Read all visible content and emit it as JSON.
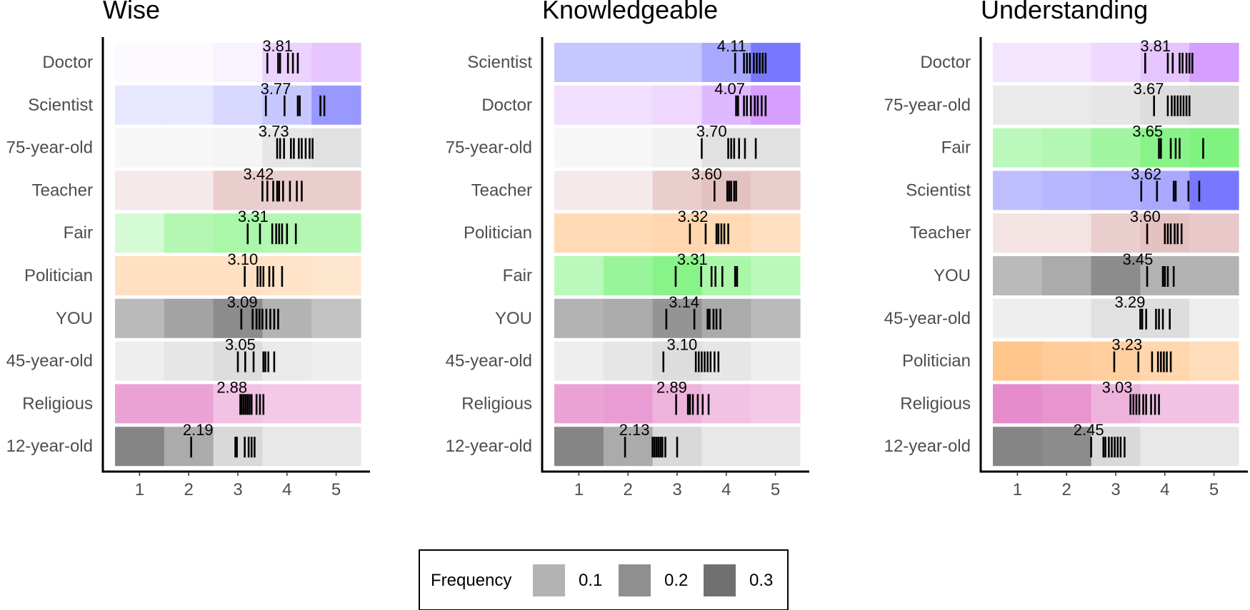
{
  "legend": {
    "title": "Frequency",
    "items": [
      {
        "label": "0.1",
        "value": 0.1,
        "color": "#b3b3b3"
      },
      {
        "label": "0.2",
        "value": 0.2,
        "color": "#8f8f8f"
      },
      {
        "label": "0.3",
        "value": 0.3,
        "color": "#707070"
      }
    ]
  },
  "chart_data": [
    {
      "type": "heatmap",
      "title": "Wise",
      "xlabel": "",
      "ylabel": "",
      "x_ticks": [
        "1",
        "2",
        "3",
        "4",
        "5"
      ],
      "xlim": [
        0.5,
        5.5
      ],
      "grid": false,
      "rows": [
        {
          "label": "Doctor",
          "mean": "3.81",
          "color": "#c77dff",
          "freq": [
            0.05,
            0.05,
            0.1,
            0.35,
            0.45
          ],
          "ticks": [
            3.6,
            3.82,
            3.86,
            4.02,
            4.12,
            4.22
          ]
        },
        {
          "label": "Scientist",
          "mean": "3.77",
          "color": "#6060ff",
          "freq": [
            0.15,
            0.15,
            0.25,
            0.35,
            0.65
          ],
          "ticks": [
            3.57,
            3.95,
            4.22,
            4.26,
            4.68,
            4.76
          ]
        },
        {
          "label": "75-year-old",
          "mean": "3.73",
          "color": "#aaaaaa",
          "freq": [
            0.1,
            0.1,
            0.12,
            0.3,
            0.35
          ],
          "ticks": [
            3.8,
            3.86,
            3.94,
            4.08,
            4.14,
            4.24,
            4.3,
            4.38,
            4.46,
            4.52
          ]
        },
        {
          "label": "Teacher",
          "mean": "3.42",
          "color": "#d09090",
          "freq": [
            0.2,
            0.2,
            0.45,
            0.45,
            0.45
          ],
          "ticks": [
            3.5,
            3.6,
            3.72,
            3.8,
            3.84,
            3.92,
            4.06,
            4.2,
            4.3
          ]
        },
        {
          "label": "Fair",
          "mean": "3.31",
          "color": "#55ee55",
          "freq": [
            0.25,
            0.45,
            0.5,
            0.45,
            0.45
          ],
          "ticks": [
            3.2,
            3.45,
            3.7,
            3.78,
            3.84,
            3.9,
            4.0,
            4.18
          ]
        },
        {
          "label": "Politician",
          "mean": "3.10",
          "color": "#ffbb77",
          "freq": [
            0.45,
            0.45,
            0.45,
            0.4,
            0.35
          ],
          "ticks": [
            3.14,
            3.4,
            3.46,
            3.52,
            3.64,
            3.72,
            3.9
          ]
        },
        {
          "label": "YOU",
          "mean": "3.09",
          "color": "#666666",
          "freq": [
            0.45,
            0.6,
            0.75,
            0.5,
            0.4
          ],
          "ticks": [
            3.07,
            3.3,
            3.38,
            3.44,
            3.5,
            3.58,
            3.66,
            3.74,
            3.82
          ]
        },
        {
          "label": "45-year-old",
          "mean": "3.05",
          "color": "#aaaaaa",
          "freq": [
            0.2,
            0.3,
            0.4,
            0.25,
            0.2
          ],
          "ticks": [
            3.0,
            3.15,
            3.32,
            3.52,
            3.56,
            3.62,
            3.74
          ]
        },
        {
          "label": "Religious",
          "mean": "2.88",
          "color": "#dd66bb",
          "freq": [
            0.6,
            0.6,
            0.4,
            0.35,
            0.35
          ],
          "ticks": [
            3.05,
            3.08,
            3.12,
            3.16,
            3.2,
            3.24,
            3.28,
            3.38,
            3.45,
            3.52
          ]
        },
        {
          "label": "12-year-old",
          "mean": "2.19",
          "color": "#666666",
          "freq": [
            0.8,
            0.55,
            0.25,
            0.15,
            0.15
          ],
          "ticks": [
            2.05,
            2.95,
            2.98,
            3.14,
            3.22,
            3.28,
            3.34
          ]
        }
      ]
    },
    {
      "type": "heatmap",
      "title": "Knowledgeable",
      "xlabel": "",
      "ylabel": "",
      "x_ticks": [
        "1",
        "2",
        "3",
        "4",
        "5"
      ],
      "xlim": [
        0.5,
        5.5
      ],
      "grid": false,
      "rows": [
        {
          "label": "Scientist",
          "mean": "4.11",
          "color": "#6060ff",
          "freq": [
            0.35,
            0.35,
            0.35,
            0.55,
            0.85
          ],
          "ticks": [
            4.18,
            4.36,
            4.42,
            4.48,
            4.56,
            4.62,
            4.68,
            4.74,
            4.8
          ]
        },
        {
          "label": "Doctor",
          "mean": "4.07",
          "color": "#c77dff",
          "freq": [
            0.25,
            0.25,
            0.3,
            0.55,
            0.75
          ],
          "ticks": [
            4.2,
            4.24,
            4.36,
            4.42,
            4.5,
            4.58,
            4.64,
            4.72,
            4.8
          ]
        },
        {
          "label": "75-year-old",
          "mean": "3.70",
          "color": "#aaaaaa",
          "freq": [
            0.1,
            0.1,
            0.15,
            0.35,
            0.35
          ],
          "ticks": [
            3.5,
            4.04,
            4.1,
            4.16,
            4.26,
            4.38,
            4.6
          ]
        },
        {
          "label": "Teacher",
          "mean": "3.60",
          "color": "#d09090",
          "freq": [
            0.2,
            0.2,
            0.45,
            0.55,
            0.45
          ],
          "ticks": [
            3.76,
            4.02,
            4.06,
            4.1,
            4.16,
            4.2
          ]
        },
        {
          "label": "Politician",
          "mean": "3.32",
          "color": "#ffbb77",
          "freq": [
            0.55,
            0.55,
            0.6,
            0.55,
            0.45
          ],
          "ticks": [
            3.26,
            3.58,
            3.8,
            3.84,
            3.9,
            3.96,
            4.04
          ]
        },
        {
          "label": "Fair",
          "mean": "3.31",
          "color": "#55ee55",
          "freq": [
            0.4,
            0.6,
            0.7,
            0.5,
            0.4
          ],
          "ticks": [
            2.97,
            3.49,
            3.7,
            3.78,
            3.92,
            4.18,
            4.22
          ]
        },
        {
          "label": "YOU",
          "mean": "3.14",
          "color": "#666666",
          "freq": [
            0.5,
            0.55,
            0.7,
            0.55,
            0.45
          ],
          "ticks": [
            2.78,
            3.35,
            3.62,
            3.66,
            3.74,
            3.8,
            3.88
          ]
        },
        {
          "label": "45-year-old",
          "mean": "3.10",
          "color": "#aaaaaa",
          "freq": [
            0.2,
            0.3,
            0.4,
            0.3,
            0.2
          ],
          "ticks": [
            2.72,
            3.38,
            3.44,
            3.5,
            3.56,
            3.62,
            3.68,
            3.76,
            3.84
          ]
        },
        {
          "label": "Religious",
          "mean": "2.89",
          "color": "#dd66bb",
          "freq": [
            0.6,
            0.65,
            0.5,
            0.4,
            0.35
          ],
          "ticks": [
            2.98,
            3.22,
            3.26,
            3.32,
            3.42,
            3.52,
            3.64
          ]
        },
        {
          "label": "12-year-old",
          "mean": "2.13",
          "color": "#666666",
          "freq": [
            0.8,
            0.55,
            0.25,
            0.15,
            0.15
          ],
          "ticks": [
            1.94,
            2.5,
            2.54,
            2.58,
            2.62,
            2.66,
            2.7,
            2.76,
            3.0
          ]
        }
      ]
    },
    {
      "type": "heatmap",
      "title": "Understanding",
      "xlabel": "",
      "ylabel": "",
      "x_ticks": [
        "1",
        "2",
        "3",
        "4",
        "5"
      ],
      "xlim": [
        0.5,
        5.5
      ],
      "grid": false,
      "rows": [
        {
          "label": "Doctor",
          "mean": "3.81",
          "color": "#c77dff",
          "freq": [
            0.2,
            0.2,
            0.3,
            0.45,
            0.75
          ],
          "ticks": [
            3.6,
            4.06,
            4.16,
            4.3,
            4.36,
            4.44,
            4.5,
            4.56
          ]
        },
        {
          "label": "75-year-old",
          "mean": "3.67",
          "color": "#aaaaaa",
          "freq": [
            0.25,
            0.25,
            0.3,
            0.4,
            0.45
          ],
          "ticks": [
            3.78,
            4.06,
            4.14,
            4.2,
            4.26,
            4.32,
            4.38,
            4.44,
            4.5
          ]
        },
        {
          "label": "Fair",
          "mean": "3.65",
          "color": "#55ee55",
          "freq": [
            0.4,
            0.45,
            0.55,
            0.7,
            0.75
          ],
          "ticks": [
            3.88,
            3.92,
            4.12,
            4.22,
            4.3,
            4.78
          ]
        },
        {
          "label": "Scientist",
          "mean": "3.62",
          "color": "#6060ff",
          "freq": [
            0.4,
            0.45,
            0.5,
            0.55,
            0.85
          ],
          "ticks": [
            3.52,
            3.84,
            4.18,
            4.22,
            4.48,
            4.7
          ]
        },
        {
          "label": "Teacher",
          "mean": "3.60",
          "color": "#d09090",
          "freq": [
            0.25,
            0.25,
            0.45,
            0.55,
            0.5
          ],
          "ticks": [
            3.64,
            4.0,
            4.06,
            4.12,
            4.2,
            4.26,
            4.34
          ]
        },
        {
          "label": "YOU",
          "mean": "3.45",
          "color": "#666666",
          "freq": [
            0.45,
            0.55,
            0.75,
            0.5,
            0.5
          ],
          "ticks": [
            3.64,
            3.96,
            4.0,
            4.06,
            4.18
          ]
        },
        {
          "label": "45-year-old",
          "mean": "3.29",
          "color": "#aaaaaa",
          "freq": [
            0.2,
            0.2,
            0.35,
            0.4,
            0.2
          ],
          "ticks": [
            3.5,
            3.54,
            3.62,
            3.82,
            3.88,
            3.96,
            4.1
          ]
        },
        {
          "label": "Politician",
          "mean": "3.23",
          "color": "#ffbb77",
          "freq": [
            0.85,
            0.75,
            0.7,
            0.6,
            0.5
          ],
          "ticks": [
            2.97,
            3.46,
            3.74,
            3.86,
            3.92,
            3.98,
            4.04,
            4.12
          ]
        },
        {
          "label": "Religious",
          "mean": "3.03",
          "color": "#dd66bb",
          "freq": [
            0.75,
            0.7,
            0.5,
            0.4,
            0.4
          ],
          "ticks": [
            3.3,
            3.36,
            3.42,
            3.48,
            3.56,
            3.62,
            3.72,
            3.8,
            3.88
          ]
        },
        {
          "label": "12-year-old",
          "mean": "2.45",
          "color": "#666666",
          "freq": [
            0.8,
            0.75,
            0.25,
            0.15,
            0.15
          ],
          "ticks": [
            2.5,
            2.75,
            2.79,
            2.86,
            2.92,
            2.98,
            3.04,
            3.1,
            3.18
          ]
        }
      ]
    }
  ]
}
